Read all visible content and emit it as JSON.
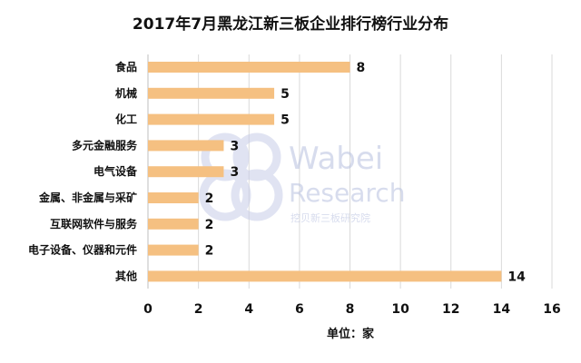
{
  "chart_data": {
    "type": "bar",
    "orientation": "horizontal",
    "title": "2017年7月黑龙江新三板企业排行榜行业分布",
    "categories": [
      "食品",
      "机械",
      "化工",
      "多元金融服务",
      "电气设备",
      "金属、非金属与采矿",
      "互联网软件与服务",
      "电子设备、仪器和元件",
      "其他"
    ],
    "values": [
      8,
      5,
      5,
      3,
      3,
      2,
      2,
      2,
      14
    ],
    "xlabel": "单位：家",
    "ylabel": "",
    "xlim": [
      0,
      16
    ],
    "xticks": [
      0,
      2,
      4,
      6,
      8,
      10,
      12,
      14,
      16
    ],
    "grid": "vertical",
    "bar_color": "#f5c081"
  },
  "watermark": {
    "brand": "Wabei",
    "sub": "Research",
    "cn": "挖贝新三板研究院"
  }
}
